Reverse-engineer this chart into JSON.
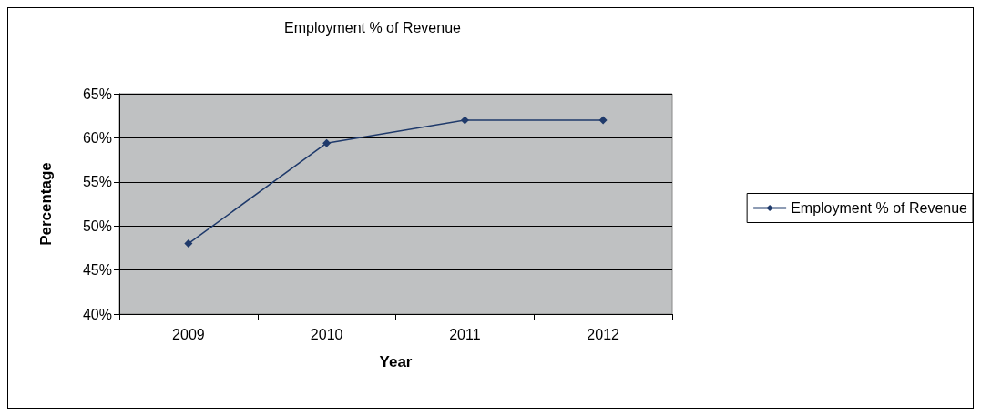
{
  "chart_data": {
    "type": "line",
    "title": "Employment % of Revenue",
    "xlabel": "Year",
    "ylabel": "Percentage",
    "categories": [
      "2009",
      "2010",
      "2011",
      "2012"
    ],
    "series": [
      {
        "name": "Employment % of Revenue",
        "color": "#1f3a6b",
        "values": [
          48.0,
          59.4,
          62.0,
          62.0
        ]
      }
    ],
    "ylim": [
      40,
      65
    ],
    "yticks": [
      {
        "value": 40,
        "label": "40%"
      },
      {
        "value": 45,
        "label": "45%"
      },
      {
        "value": 50,
        "label": "50%"
      },
      {
        "value": 55,
        "label": "55%"
      },
      {
        "value": 60,
        "label": "60%"
      },
      {
        "value": 65,
        "label": "65%"
      }
    ],
    "grid": "y",
    "legend": "right",
    "marker": "diamond",
    "line_style": "solid"
  }
}
